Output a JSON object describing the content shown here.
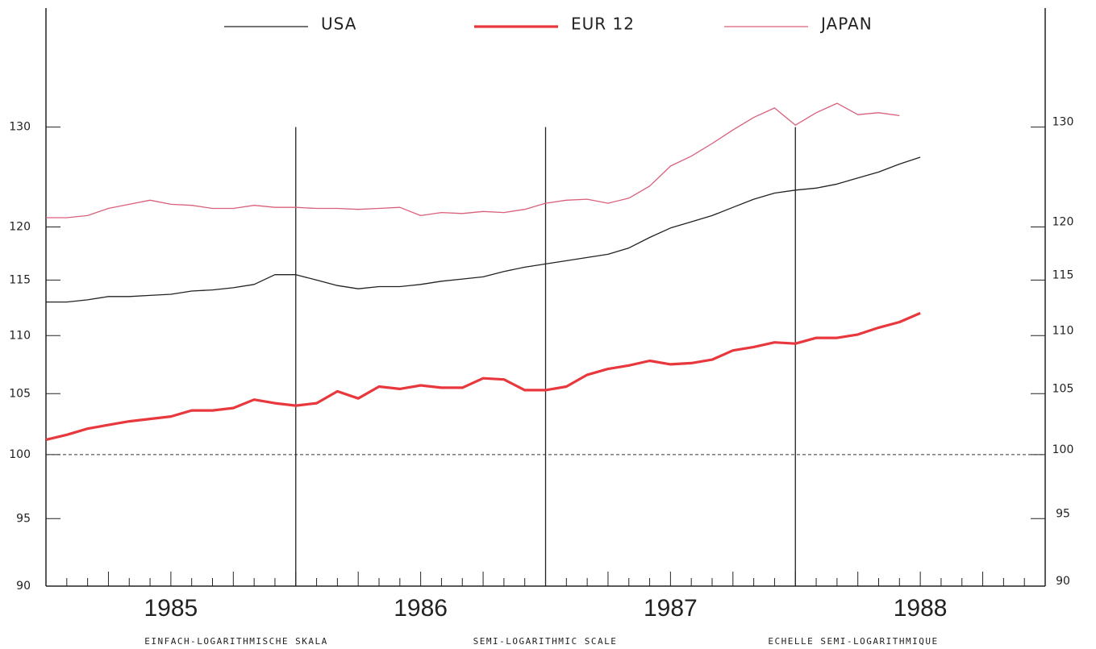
{
  "chart_data": {
    "type": "line",
    "categories": [
      null,
      null,
      null,
      null,
      null,
      null,
      "1985",
      null,
      null,
      null,
      null,
      null,
      null,
      null,
      null,
      null,
      null,
      null,
      "1986",
      null,
      null,
      null,
      null,
      null,
      null,
      null,
      null,
      null,
      null,
      null,
      "1987",
      null,
      null,
      null,
      null,
      null,
      null,
      null,
      null,
      null,
      null,
      null,
      "1988",
      null,
      null,
      null,
      null,
      null
    ],
    "series": [
      {
        "name": "USA",
        "color": "#222222",
        "width": 1.3,
        "values": [
          113.0,
          113.0,
          113.2,
          113.5,
          113.5,
          113.6,
          113.7,
          114.0,
          114.1,
          114.3,
          114.6,
          115.5,
          115.5,
          115.0,
          114.5,
          114.2,
          114.4,
          114.4,
          114.6,
          114.9,
          115.1,
          115.3,
          115.8,
          116.2,
          116.5,
          116.8,
          117.1,
          117.4,
          118.0,
          119.0,
          119.9,
          120.5,
          121.1,
          121.9,
          122.7,
          123.3,
          123.6,
          123.8,
          124.2,
          124.8,
          125.4,
          126.2,
          126.9,
          null,
          null,
          null,
          null,
          null
        ]
      },
      {
        "name": "EUR 12",
        "color": "#e8383d",
        "width": 3.2,
        "values": [
          101.2,
          101.6,
          102.1,
          102.4,
          102.7,
          102.9,
          103.1,
          103.6,
          103.6,
          103.8,
          104.5,
          104.2,
          104.0,
          104.2,
          105.2,
          104.6,
          105.6,
          105.4,
          105.7,
          105.5,
          105.5,
          106.3,
          106.2,
          105.3,
          105.3,
          105.6,
          106.6,
          107.1,
          107.4,
          107.8,
          107.5,
          107.6,
          107.9,
          108.7,
          109.0,
          109.4,
          109.3,
          109.8,
          109.8,
          110.1,
          110.7,
          111.2,
          112.0,
          null,
          null,
          null,
          null,
          null
        ]
      },
      {
        "name": "JAPAN",
        "color": "#d9607a",
        "width": 1.3,
        "values": [
          120.9,
          120.9,
          121.1,
          121.8,
          122.2,
          122.6,
          122.2,
          122.1,
          121.8,
          121.8,
          122.1,
          121.9,
          121.9,
          121.8,
          121.8,
          121.7,
          121.8,
          121.9,
          121.1,
          121.4,
          121.3,
          121.5,
          121.4,
          121.7,
          122.3,
          122.6,
          122.7,
          122.3,
          122.8,
          124.0,
          126.0,
          127.0,
          128.3,
          129.7,
          131.0,
          132.0,
          130.2,
          131.5,
          132.5,
          131.3,
          131.5,
          131.2,
          null,
          null,
          null,
          null,
          null,
          null
        ]
      }
    ],
    "ylim": [
      90,
      143
    ],
    "yticks": [
      90,
      95,
      100,
      105,
      110,
      115,
      120,
      130
    ],
    "log_scale": true,
    "reference_line": 100,
    "legend": "top",
    "footer": [
      "EINFACH-LOGARITHMISCHE SKALA",
      "SEMI-LOGARITHMIC SCALE",
      "ECHELLE SEMI-LOGARITHMIQUE"
    ]
  }
}
